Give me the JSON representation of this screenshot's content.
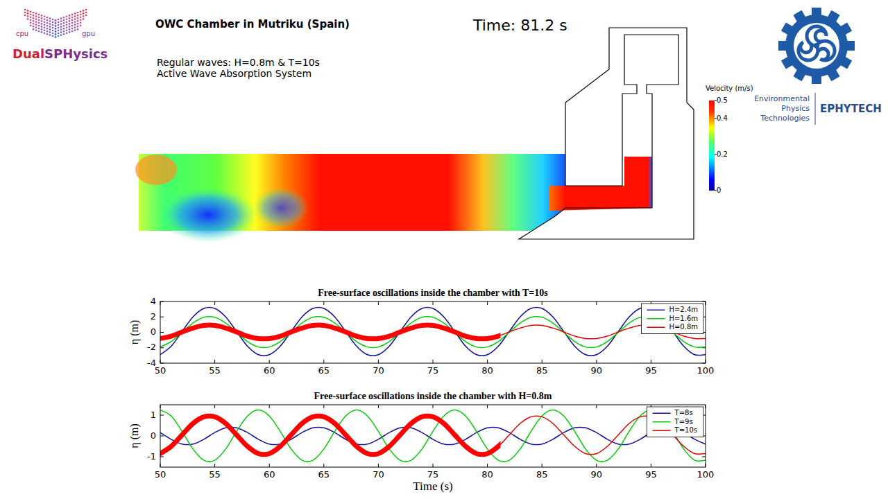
{
  "header": {
    "title": "OWC Chamber in Mutriku (Spain)",
    "notes": [
      "Regular waves: H=0.8m & T=10s",
      "Active Wave Absorption System"
    ],
    "time": {
      "value": 81.2,
      "label": "Time: 81.2 s"
    }
  },
  "logos": {
    "left": {
      "name": "DualSPHysics",
      "cpu": "cpu",
      "gpu": "gpu"
    },
    "right": {
      "lines": [
        "Environmental",
        "Physics",
        "Technologies"
      ],
      "name": "EPHYTECH"
    }
  },
  "colorbar": {
    "label": "Velocity (m/s)",
    "range": [
      0,
      0.5
    ],
    "ticks": [
      0,
      0.2,
      0.4,
      0.5
    ]
  },
  "chart_data": [
    {
      "type": "line",
      "title": "Free-surface oscillations inside the chamber with T=10s",
      "y_label": "η (m)",
      "x": [
        50,
        51,
        52,
        53,
        54,
        55,
        56,
        57,
        58,
        59,
        60,
        61,
        62,
        63,
        64,
        65,
        66,
        67,
        68,
        69,
        70,
        71,
        72,
        73,
        74,
        75,
        76,
        77,
        78,
        79,
        80,
        81,
        82,
        83,
        84,
        85,
        86,
        87,
        88,
        89,
        90,
        91,
        92,
        93,
        94,
        95,
        96,
        97,
        98,
        99,
        100
      ],
      "xlim": [
        50,
        100
      ],
      "xticks": [
        50,
        55,
        60,
        65,
        70,
        75,
        80,
        85,
        90,
        95,
        100
      ],
      "ylim": [
        -4,
        4
      ],
      "yticks": [
        -4,
        -2,
        0,
        2,
        4
      ],
      "grid": false,
      "legend": "upper right",
      "series": [
        {
          "name": "H=2.4m",
          "color": "#10109a",
          "line_style": "solid",
          "values": [
            -2.9,
            -1.8,
            0.1,
            2.0,
            3.1,
            3.1,
            2.0,
            0.1,
            -1.8,
            -2.9,
            -2.9,
            -1.8,
            0.1,
            2.0,
            3.1,
            3.1,
            2.0,
            0.1,
            -1.8,
            -2.9,
            -2.9,
            -1.8,
            0.1,
            2.0,
            3.1,
            3.1,
            2.0,
            0.1,
            -1.8,
            -2.9,
            -2.9,
            -1.8,
            0.1,
            2.0,
            3.1,
            3.1,
            2.0,
            0.1,
            -1.8,
            -2.9,
            -2.9,
            -1.8,
            0.1,
            2.0,
            3.1,
            3.1,
            2.0,
            0.1,
            -1.8,
            -2.9,
            -2.9
          ]
        },
        {
          "name": "H=1.6m",
          "color": "#00cc00",
          "line_style": "solid",
          "values": [
            -1.9,
            -1.2,
            0,
            1.2,
            1.95,
            1.95,
            1.2,
            0,
            -1.2,
            -1.9,
            -1.9,
            -1.2,
            0,
            1.2,
            1.95,
            1.95,
            1.2,
            0,
            -1.2,
            -1.9,
            -1.9,
            -1.2,
            0,
            1.2,
            1.95,
            1.95,
            1.2,
            0,
            -1.2,
            -1.9,
            -1.9,
            -1.2,
            0,
            1.2,
            1.95,
            1.95,
            1.2,
            0,
            -1.2,
            -1.9,
            -1.9,
            -1.2,
            0,
            1.2,
            1.95,
            1.95,
            1.2,
            0,
            -1.2,
            -1.9,
            -1.9
          ]
        },
        {
          "name": "H=0.8m",
          "color": "#e00000",
          "line_style": "solid",
          "marker": "o",
          "values": [
            -0.8,
            -0.5,
            0.05,
            0.55,
            0.9,
            0.9,
            0.55,
            0.05,
            -0.5,
            -0.8,
            -0.8,
            -0.5,
            0.05,
            0.55,
            0.9,
            0.9,
            0.55,
            0.05,
            -0.5,
            -0.8,
            -0.8,
            -0.5,
            0.05,
            0.55,
            0.9,
            0.9,
            0.55,
            0.05,
            -0.5,
            -0.8,
            -0.8,
            -0.5,
            0.05,
            0.55,
            0.9,
            0.9,
            0.55,
            0.05,
            -0.5,
            -0.8,
            -0.8,
            -0.5,
            0.05,
            0.55,
            0.9,
            0.9,
            0.55,
            0.05,
            -0.5,
            -0.8,
            -0.8
          ]
        }
      ]
    },
    {
      "type": "line",
      "title": "Free-surface oscillations inside the chamber with H=0.8m",
      "y_label": "η (m)",
      "x_label": "Time (s)",
      "x": [
        50,
        51,
        52,
        53,
        54,
        55,
        56,
        57,
        58,
        59,
        60,
        61,
        62,
        63,
        64,
        65,
        66,
        67,
        68,
        69,
        70,
        71,
        72,
        73,
        74,
        75,
        76,
        77,
        78,
        79,
        80,
        81,
        82,
        83,
        84,
        85,
        86,
        87,
        88,
        89,
        90,
        91,
        92,
        93,
        94,
        95,
        96,
        97,
        98,
        99,
        100
      ],
      "xlim": [
        50,
        100
      ],
      "xticks": [
        50,
        55,
        60,
        65,
        70,
        75,
        80,
        85,
        90,
        95,
        100
      ],
      "ylim": [
        -1.5,
        1.5
      ],
      "yticks": [
        -1,
        0,
        1
      ],
      "grid": false,
      "legend": "upper right",
      "series": [
        {
          "name": "T=8s",
          "color": "#10109a",
          "line_style": "solid",
          "values": [
            0.16,
            -0.16,
            -0.39,
            -0.39,
            -0.16,
            0.16,
            0.39,
            0.39,
            0.16,
            -0.16,
            -0.39,
            -0.39,
            -0.16,
            0.16,
            0.39,
            0.39,
            0.16,
            -0.16,
            -0.39,
            -0.39,
            -0.16,
            0.16,
            0.39,
            0.39,
            0.16,
            -0.16,
            -0.39,
            -0.39,
            -0.16,
            0.16,
            0.39,
            0.39,
            0.16,
            -0.16,
            -0.39,
            -0.39,
            -0.16,
            0.16,
            0.39,
            0.39,
            0.16,
            -0.16,
            -0.39,
            -0.39,
            -0.16,
            0.16,
            0.39,
            0.39,
            0.16,
            -0.16,
            -0.39
          ]
        },
        {
          "name": "T=9s",
          "color": "#00cc00",
          "line_style": "solid",
          "values": [
            1.25,
            0.96,
            0.22,
            -0.63,
            -1.17,
            -1.17,
            -0.63,
            0.22,
            0.96,
            1.25,
            0.96,
            0.22,
            -0.63,
            -1.17,
            -1.17,
            -0.63,
            0.22,
            0.96,
            1.25,
            0.96,
            0.22,
            -0.63,
            -1.17,
            -1.17,
            -0.63,
            0.22,
            0.96,
            1.25,
            0.96,
            0.22,
            -0.63,
            -1.17,
            -1.17,
            -0.63,
            0.22,
            0.96,
            1.25,
            0.96,
            0.22,
            -0.63,
            -1.17,
            -1.17,
            -0.63,
            0.22,
            0.96,
            1.25,
            0.96,
            0.22,
            -0.63,
            -1.17,
            -1.17
          ]
        },
        {
          "name": "T=10s",
          "color": "#e00000",
          "line_style": "solid",
          "marker": "o",
          "values": [
            -0.85,
            -0.5,
            0.05,
            0.6,
            0.92,
            0.92,
            0.6,
            0.05,
            -0.5,
            -0.85,
            -0.85,
            -0.5,
            0.05,
            0.6,
            0.92,
            0.92,
            0.6,
            0.05,
            -0.5,
            -0.85,
            -0.85,
            -0.5,
            0.05,
            0.6,
            0.92,
            0.92,
            0.6,
            0.05,
            -0.5,
            -0.85,
            -0.85,
            -0.5,
            0.05,
            0.6,
            0.92,
            0.92,
            0.6,
            0.05,
            -0.5,
            -0.85,
            -0.85,
            -0.5,
            0.05,
            0.6,
            0.92,
            0.92,
            0.6,
            0.05,
            -0.5,
            -0.85,
            -0.85
          ]
        }
      ]
    }
  ]
}
